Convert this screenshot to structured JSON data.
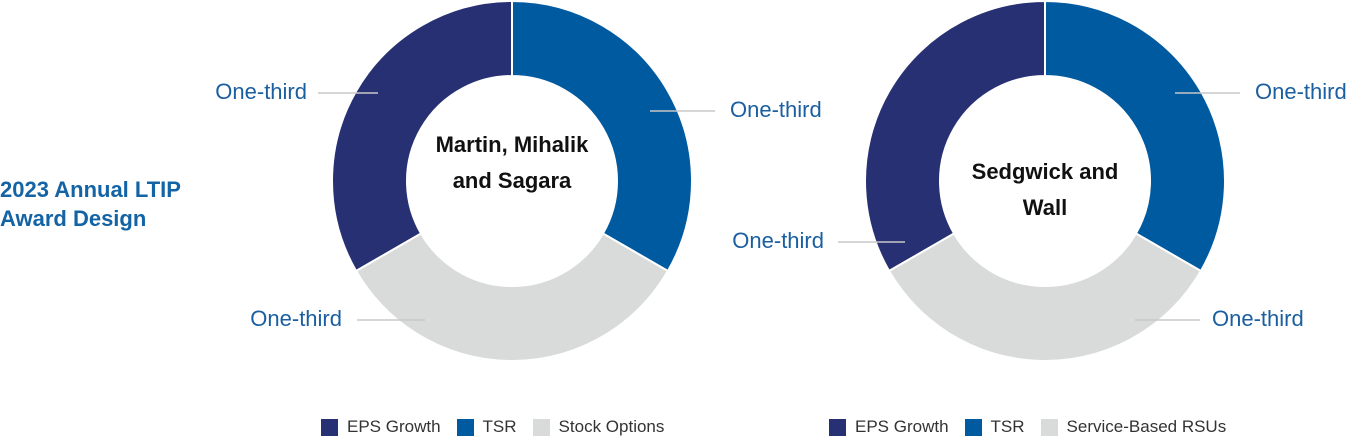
{
  "title": "2023 Annual LTIP Award Design",
  "chart_data": [
    {
      "type": "pie",
      "center_label": "Martin, Mihalik and Sagara",
      "categories": [
        "EPS Growth",
        "TSR",
        "Stock Options"
      ],
      "values": [
        33.3,
        33.3,
        33.3
      ],
      "value_labels": [
        "One-third",
        "One-third",
        "One-third"
      ],
      "colors": [
        "#283074",
        "#005aa0",
        "#d9dada"
      ]
    },
    {
      "type": "pie",
      "center_label": "Sedgwick and Wall",
      "categories": [
        "EPS Growth",
        "TSR",
        "Service-Based RSUs"
      ],
      "values": [
        33.3,
        33.3,
        33.3
      ],
      "value_labels": [
        "One-third",
        "One-third",
        "One-third"
      ],
      "colors": [
        "#283074",
        "#005aa0",
        "#d9dada"
      ]
    }
  ]
}
